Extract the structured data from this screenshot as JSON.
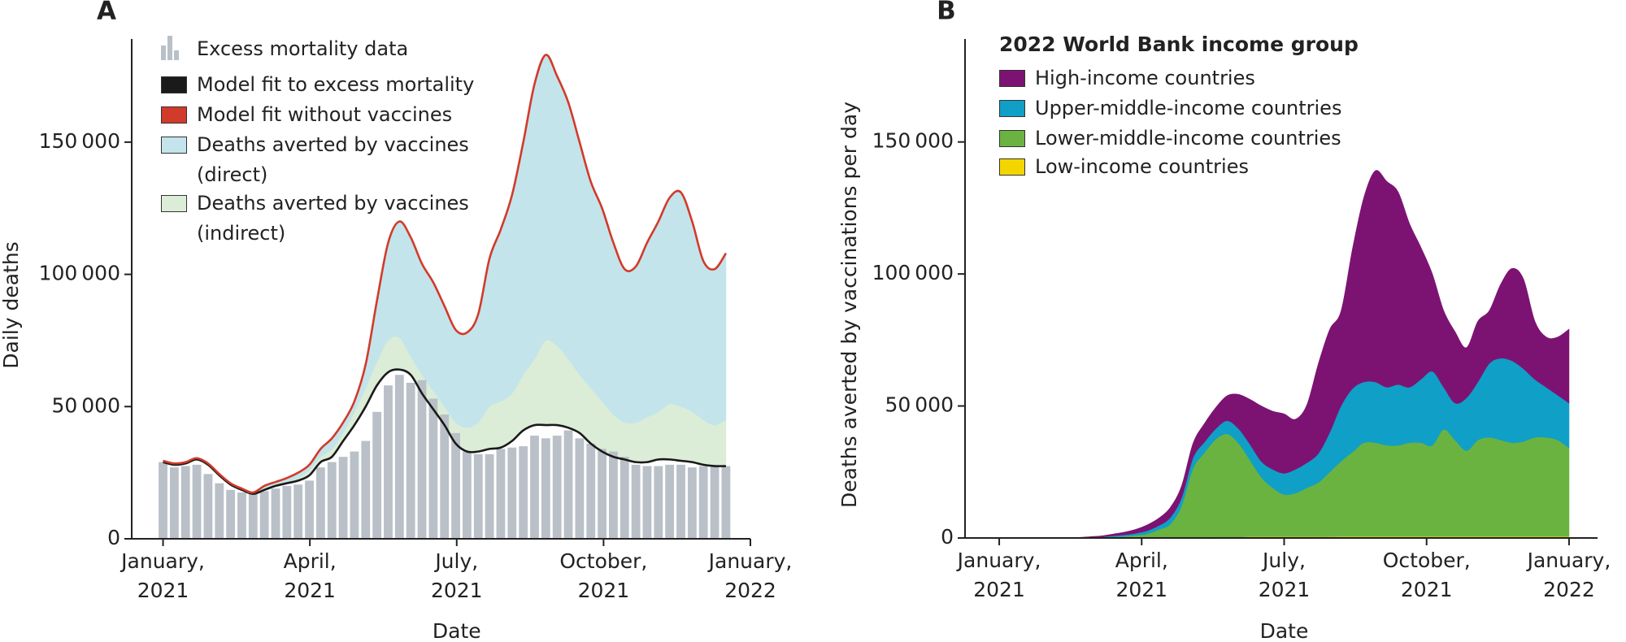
{
  "chart_data": [
    {
      "type": "combo",
      "panel_label": "A",
      "y_label": "Daily deaths",
      "x_label": "Date",
      "x": [
        0,
        0.23,
        0.46,
        0.69,
        0.92,
        1.15,
        1.38,
        1.61,
        1.84,
        2.07,
        2.3,
        2.53,
        2.76,
        2.99,
        3.22,
        3.45,
        3.68,
        3.91,
        4.14,
        4.37,
        4.6,
        4.83,
        5.06,
        5.29,
        5.52,
        5.75,
        5.98,
        6.21,
        6.44,
        6.67,
        6.9,
        7.13,
        7.36,
        7.59,
        7.82,
        8.05,
        8.28,
        8.51,
        8.74,
        8.97,
        9.2,
        9.43,
        9.66,
        9.89,
        10.12,
        10.35,
        10.58,
        10.81,
        11.04,
        11.27,
        11.5
      ],
      "xlim": [
        -0.64,
        12
      ],
      "xticks": [
        {
          "value": 0,
          "label": "January, 2021"
        },
        {
          "value": 3,
          "label": "April, 2021"
        },
        {
          "value": 6,
          "label": "July, 2021"
        },
        {
          "value": 9,
          "label": "October, 2021"
        },
        {
          "value": 12,
          "label": "January, 2022"
        }
      ],
      "ylim": [
        0,
        189000
      ],
      "yticks": [
        0,
        {
          "value": 50000,
          "label": "50 000"
        },
        {
          "value": 100000,
          "label": "100 000"
        },
        {
          "value": 150000,
          "label": "150 000"
        }
      ],
      "legend": "upper left",
      "series": [
        {
          "name": "Excess mortality data",
          "type": "bar",
          "color": "#b9c0c8",
          "values": [
            29000,
            27000,
            27500,
            28000,
            24500,
            21000,
            18500,
            17500,
            17000,
            18000,
            19000,
            20000,
            20500,
            22000,
            27000,
            29000,
            31000,
            33000,
            37000,
            48000,
            58000,
            62000,
            59000,
            60000,
            53000,
            47000,
            40000,
            33000,
            32000,
            32000,
            34000,
            34500,
            35000,
            39000,
            38000,
            39000,
            41000,
            38000,
            36000,
            34000,
            33000,
            31000,
            28000,
            27500,
            27500,
            28000,
            28000,
            27000,
            27500,
            28000,
            27500
          ]
        },
        {
          "name": "Model fit to excess mortality",
          "type": "line",
          "color": "#1a1a1a",
          "values": [
            29000,
            28000,
            28500,
            30000,
            28000,
            24000,
            20500,
            18500,
            17000,
            18500,
            20000,
            21000,
            22000,
            24000,
            29000,
            31000,
            37000,
            43000,
            50000,
            58000,
            63000,
            64000,
            62000,
            55000,
            49000,
            43000,
            36000,
            33000,
            33000,
            34000,
            34500,
            37000,
            41000,
            43000,
            43000,
            43000,
            42000,
            40000,
            36000,
            33000,
            31000,
            30000,
            29000,
            29000,
            30000,
            30000,
            29500,
            29000,
            28000,
            27500,
            27500
          ]
        },
        {
          "name": "Model fit without vaccines",
          "type": "line",
          "color": "#d23a2a",
          "values": [
            29500,
            28500,
            29000,
            30500,
            28500,
            24500,
            21000,
            19000,
            17500,
            20000,
            21500,
            23000,
            25000,
            28000,
            34000,
            38000,
            44000,
            52000,
            66000,
            90000,
            112000,
            120000,
            114000,
            104000,
            97000,
            88000,
            79000,
            78000,
            85000,
            106000,
            117000,
            130000,
            150000,
            172000,
            183000,
            175000,
            165000,
            150000,
            135000,
            125000,
            112000,
            102000,
            103000,
            112000,
            120000,
            129000,
            131000,
            120000,
            105000,
            102000,
            108000
          ]
        },
        {
          "name": "Deaths averted by vaccines (direct)",
          "type": "area",
          "color": "#c3e4eb",
          "values": [
            500,
            500,
            500,
            500,
            500,
            500,
            500,
            500,
            500,
            1500,
            1500,
            1500,
            2000,
            2000,
            3000,
            4000,
            4000,
            4000,
            9000,
            23000,
            37000,
            44000,
            45000,
            42000,
            41000,
            38000,
            35000,
            36000,
            41000,
            56000,
            65000,
            75000,
            88000,
            104000,
            108000,
            102000,
            97000,
            88000,
            78000,
            73000,
            65000,
            58000,
            59000,
            66000,
            72000,
            78000,
            81000,
            72000,
            60000,
            59000,
            63000
          ]
        },
        {
          "name": "Deaths averted by vaccines (indirect)",
          "type": "area",
          "color": "#dbedd6",
          "values": [
            0,
            0,
            0,
            0,
            0,
            0,
            0,
            0,
            0,
            0,
            0,
            500,
            1000,
            2000,
            2000,
            3000,
            3000,
            5000,
            7000,
            9000,
            12000,
            12000,
            7000,
            7000,
            7000,
            7000,
            8000,
            9000,
            11000,
            16000,
            17500,
            18000,
            21000,
            25000,
            32000,
            30000,
            26000,
            22000,
            21000,
            19000,
            16000,
            14000,
            15000,
            17000,
            18000,
            21000,
            20500,
            19000,
            17000,
            15500,
            17500
          ]
        }
      ]
    },
    {
      "type": "area",
      "stacked": true,
      "panel_label": "B",
      "y_label": "Deaths averted by vaccinations per day",
      "x_label": "Date",
      "legend_title": "2022 World Bank income group",
      "x": [
        0,
        0.24,
        0.48,
        0.72,
        0.96,
        1.2,
        1.44,
        1.68,
        1.92,
        2.16,
        2.4,
        2.64,
        2.88,
        3.12,
        3.36,
        3.6,
        3.84,
        4.08,
        4.32,
        4.56,
        4.8,
        5.04,
        5.28,
        5.52,
        5.76,
        6,
        6.24,
        6.48,
        6.72,
        6.96,
        7.2,
        7.44,
        7.68,
        7.92,
        8.16,
        8.4,
        8.64,
        8.88,
        9.12,
        9.36,
        9.6,
        9.84,
        10.08,
        10.32,
        10.56,
        10.8,
        11.04,
        11.28,
        11.52,
        11.76,
        12
      ],
      "xlim": [
        -0.72,
        12.6
      ],
      "xticks": [
        {
          "value": 0,
          "label": "January, 2021"
        },
        {
          "value": 3,
          "label": "April, 2021"
        },
        {
          "value": 6,
          "label": "July, 2021"
        },
        {
          "value": 9,
          "label": "October, 2021"
        },
        {
          "value": 12,
          "label": "January, 2022"
        }
      ],
      "ylim": [
        0,
        189000
      ],
      "yticks": [
        0,
        {
          "value": 50000,
          "label": "50 000"
        },
        {
          "value": 100000,
          "label": "100 000"
        },
        {
          "value": 150000,
          "label": "150 000"
        }
      ],
      "legend": "upper left",
      "series": [
        {
          "name": "High-income countries",
          "color": "#7c1373",
          "values": [
            0,
            0,
            0,
            0,
            0,
            0,
            100,
            200,
            300,
            400,
            700,
            1000,
            1500,
            2200,
            2800,
            3800,
            4500,
            5500,
            7000,
            8000,
            9500,
            13000,
            17000,
            21000,
            22000,
            22500,
            19000,
            22000,
            34000,
            39000,
            36000,
            53000,
            70000,
            80000,
            78000,
            73000,
            62000,
            50000,
            37000,
            29000,
            27000,
            19000,
            23000,
            20000,
            28000,
            35000,
            34000,
            22000,
            19000,
            22000,
            28000
          ]
        },
        {
          "name": "Upper-middle-income countries",
          "color": "#109fc6",
          "values": [
            0,
            0,
            0,
            0,
            0,
            0,
            0,
            0,
            100,
            200,
            400,
            600,
            800,
            1200,
            1500,
            2500,
            3000,
            4000,
            4000,
            4000,
            5000,
            5500,
            6000,
            6000,
            7000,
            8000,
            9000,
            9500,
            11000,
            15000,
            21000,
            24000,
            23000,
            23000,
            22000,
            23000,
            21000,
            24000,
            28000,
            16000,
            14000,
            20000,
            22000,
            28000,
            31000,
            31000,
            27500,
            22000,
            19000,
            17000,
            17000
          ]
        },
        {
          "name": "Lower-middle-income countries",
          "color": "#6bb340",
          "values": [
            0,
            0,
            0,
            0,
            0,
            0,
            0,
            0,
            100,
            200,
            400,
            600,
            900,
            1500,
            3000,
            5000,
            12000,
            26000,
            32000,
            37000,
            39000,
            35500,
            29000,
            22500,
            18500,
            16000,
            16500,
            18500,
            20500,
            24500,
            28500,
            32000,
            35500,
            35500,
            34500,
            34500,
            35500,
            35500,
            34500,
            40500,
            36500,
            32500,
            36500,
            37500,
            36500,
            35500,
            36000,
            37500,
            37500,
            36500,
            33500
          ]
        },
        {
          "name": "Low-income countries",
          "color": "#f3d600",
          "values": [
            0,
            0,
            0,
            0,
            0,
            0,
            0,
            0,
            0,
            0,
            0,
            0,
            100,
            100,
            200,
            200,
            200,
            300,
            300,
            400,
            400,
            400,
            500,
            500,
            500,
            500,
            500,
            500,
            500,
            500,
            600,
            600,
            600,
            600,
            600,
            600,
            600,
            600,
            600,
            600,
            600,
            600,
            600,
            600,
            600,
            600,
            600,
            600,
            600,
            600,
            600
          ]
        }
      ]
    }
  ]
}
